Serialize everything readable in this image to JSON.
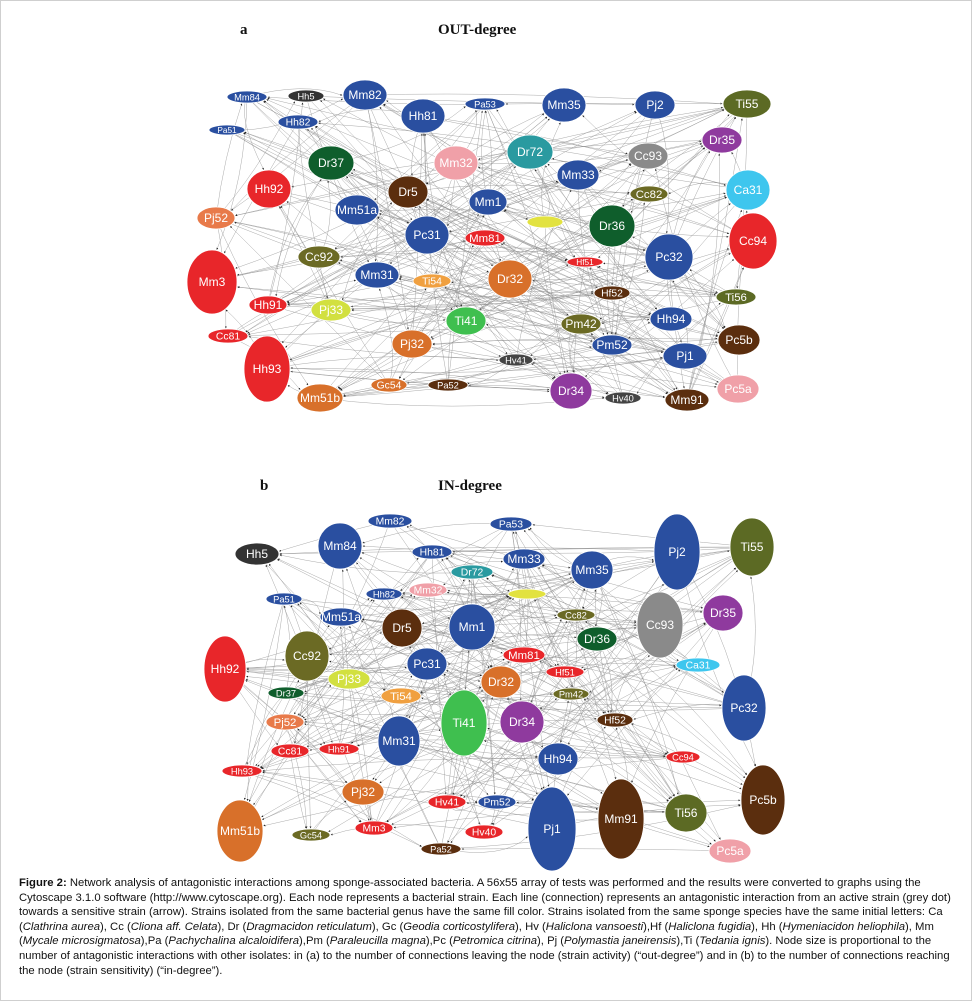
{
  "panel_a": {
    "letter": "a",
    "title": "OUT-degree",
    "nodes": [
      {
        "label": "Mm84",
        "color": "#2a4fa0"
      },
      {
        "label": "Hh5",
        "color": "#333333"
      },
      {
        "label": "Mm82",
        "color": "#2a4fa0"
      },
      {
        "label": "Pa53",
        "color": "#2a4fa0"
      },
      {
        "label": "Mm35",
        "color": "#2a4fa0"
      },
      {
        "label": "Pj2",
        "color": "#2a4fa0"
      },
      {
        "label": "Ti55",
        "color": "#5c6a24"
      },
      {
        "label": "Pa51",
        "color": "#2a4fa0"
      },
      {
        "label": "Hh82",
        "color": "#2a4fa0"
      },
      {
        "label": "Hh81",
        "color": "#2a4fa0"
      },
      {
        "label": "Dr35",
        "color": "#8f3a9e"
      },
      {
        "label": "Dr37",
        "color": "#0f5e2c"
      },
      {
        "label": "Mm32",
        "color": "#f0a0a8"
      },
      {
        "label": "Dr72",
        "color": "#2a9aa0"
      },
      {
        "label": "Cc93",
        "color": "#8a8a8a"
      },
      {
        "label": "Mm33",
        "color": "#2a4fa0"
      },
      {
        "label": "Hh92",
        "color": "#e8262a"
      },
      {
        "label": "Dr5",
        "color": "#5b2e0e"
      },
      {
        "label": "Cc82",
        "color": "#6b6a24"
      },
      {
        "label": "Ca31",
        "color": "#3ec6ee"
      },
      {
        "label": "Mm1",
        "color": "#2a4fa0"
      },
      {
        "label": "Mm51a",
        "color": "#2a4fa0"
      },
      {
        "label": "Pj52",
        "color": "#e87a4a"
      },
      {
        "label": "Pc31",
        "color": "#2a4fa0"
      },
      {
        "label": "",
        "color": "#e2e240"
      },
      {
        "label": "Dr36",
        "color": "#0f5e2c"
      },
      {
        "label": "Mm81",
        "color": "#e8262a"
      },
      {
        "label": "Cc94",
        "color": "#e8262a"
      },
      {
        "label": "Cc92",
        "color": "#6b6a24"
      },
      {
        "label": "Hf51",
        "color": "#e8262a"
      },
      {
        "label": "Pc32",
        "color": "#2a4fa0"
      },
      {
        "label": "Mm3",
        "color": "#e8262a"
      },
      {
        "label": "Mm31",
        "color": "#2a4fa0"
      },
      {
        "label": "Ti54",
        "color": "#f0a040"
      },
      {
        "label": "Dr32",
        "color": "#d8702a"
      },
      {
        "label": "Hf52",
        "color": "#5b2e0e"
      },
      {
        "label": "Ti56",
        "color": "#5c6a24"
      },
      {
        "label": "Hh91",
        "color": "#e8262a"
      },
      {
        "label": "Pj33",
        "color": "#d2e040"
      },
      {
        "label": "Ti41",
        "color": "#3fbf4f"
      },
      {
        "label": "Pm42",
        "color": "#6b6a24"
      },
      {
        "label": "Hh94",
        "color": "#2a4fa0"
      },
      {
        "label": "Cc81",
        "color": "#e8262a"
      },
      {
        "label": "Pc5b",
        "color": "#5b2e0e"
      },
      {
        "label": "Pj32",
        "color": "#d8702a"
      },
      {
        "label": "Pm52",
        "color": "#2a4fa0"
      },
      {
        "label": "Hh93",
        "color": "#e8262a"
      },
      {
        "label": "Hv41",
        "color": "#444444"
      },
      {
        "label": "Pj1",
        "color": "#2a4fa0"
      },
      {
        "label": "Gc54",
        "color": "#d8702a"
      },
      {
        "label": "Pa52",
        "color": "#5b2e0e"
      },
      {
        "label": "Mm51b",
        "color": "#d8702a"
      },
      {
        "label": "Dr34",
        "color": "#8f3a9e"
      },
      {
        "label": "Hv40",
        "color": "#444444"
      },
      {
        "label": "Mm91",
        "color": "#5b2e0e"
      },
      {
        "label": "Pc5a",
        "color": "#f0a0a8"
      }
    ]
  },
  "panel_b": {
    "letter": "b",
    "title": "IN-degree",
    "nodes": [
      {
        "label": "Mm82",
        "color": "#2a4fa0"
      },
      {
        "label": "Pa53",
        "color": "#2a4fa0"
      },
      {
        "label": "Hh5",
        "color": "#333333"
      },
      {
        "label": "Mm84",
        "color": "#2a4fa0"
      },
      {
        "label": "Hh81",
        "color": "#2a4fa0"
      },
      {
        "label": "Mm33",
        "color": "#2a4fa0"
      },
      {
        "label": "Pj2",
        "color": "#2a4fa0"
      },
      {
        "label": "Ti55",
        "color": "#5c6a24"
      },
      {
        "label": "Dr72",
        "color": "#2a9aa0"
      },
      {
        "label": "Mm35",
        "color": "#2a4fa0"
      },
      {
        "label": "Pa51",
        "color": "#2a4fa0"
      },
      {
        "label": "Hh82",
        "color": "#2a4fa0"
      },
      {
        "label": "Mm32",
        "color": "#f0a0a8"
      },
      {
        "label": "",
        "color": "#e2e240"
      },
      {
        "label": "Cc82",
        "color": "#6b6a24"
      },
      {
        "label": "Cc93",
        "color": "#8a8a8a"
      },
      {
        "label": "Dr35",
        "color": "#8f3a9e"
      },
      {
        "label": "Mm51a",
        "color": "#2a4fa0"
      },
      {
        "label": "Dr5",
        "color": "#5b2e0e"
      },
      {
        "label": "Mm1",
        "color": "#2a4fa0"
      },
      {
        "label": "Dr36",
        "color": "#0f5e2c"
      },
      {
        "label": "Hh92",
        "color": "#e8262a"
      },
      {
        "label": "Cc92",
        "color": "#6b6a24"
      },
      {
        "label": "Pc31",
        "color": "#2a4fa0"
      },
      {
        "label": "Mm81",
        "color": "#e8262a"
      },
      {
        "label": "Ca31",
        "color": "#3ec6ee"
      },
      {
        "label": "Hf51",
        "color": "#e8262a"
      },
      {
        "label": "Pj33",
        "color": "#d2e040"
      },
      {
        "label": "Dr32",
        "color": "#d8702a"
      },
      {
        "label": "Dr37",
        "color": "#0f5e2c"
      },
      {
        "label": "Ti54",
        "color": "#f0a040"
      },
      {
        "label": "Pm42",
        "color": "#6b6a24"
      },
      {
        "label": "Pc32",
        "color": "#2a4fa0"
      },
      {
        "label": "Ti41",
        "color": "#3fbf4f"
      },
      {
        "label": "Dr34",
        "color": "#8f3a9e"
      },
      {
        "label": "Hf52",
        "color": "#5b2e0e"
      },
      {
        "label": "Pj52",
        "color": "#e87a4a"
      },
      {
        "label": "Mm31",
        "color": "#2a4fa0"
      },
      {
        "label": "Cc81",
        "color": "#e8262a"
      },
      {
        "label": "Hh91",
        "color": "#e8262a"
      },
      {
        "label": "Hh94",
        "color": "#2a4fa0"
      },
      {
        "label": "Cc94",
        "color": "#e8262a"
      },
      {
        "label": "Hh93",
        "color": "#e8262a"
      },
      {
        "label": "Pj32",
        "color": "#d8702a"
      },
      {
        "label": "Hv41",
        "color": "#e8262a"
      },
      {
        "label": "Pm52",
        "color": "#2a4fa0"
      },
      {
        "label": "Pj1",
        "color": "#2a4fa0"
      },
      {
        "label": "Mm91",
        "color": "#5b2e0e"
      },
      {
        "label": "Ti56",
        "color": "#5c6a24"
      },
      {
        "label": "Pc5b",
        "color": "#5b2e0e"
      },
      {
        "label": "Mm51b",
        "color": "#d8702a"
      },
      {
        "label": "Gc54",
        "color": "#6b6a24"
      },
      {
        "label": "Mm3",
        "color": "#e8262a"
      },
      {
        "label": "Hv40",
        "color": "#e8262a"
      },
      {
        "label": "Pa52",
        "color": "#5b2e0e"
      },
      {
        "label": "Pc5a",
        "color": "#f0a0a8"
      }
    ]
  },
  "caption": {
    "label": "Figure 2:",
    "parts": [
      {
        "t": " Network analysis of antagonistic interactions among sponge-associated bacteria. A 56x55 array of tests was performed and the results were converted to graphs using the Cytoscape 3.1.0 software (http://www.cytoscape.org). Each node represents a bacterial strain. Each line (connection) represents an antagonistic interaction from an active strain (grey dot) towards a sensitive strain (arrow). Strains isolated from the same bacterial genus have the same fill color. Strains isolated from the same sponge species have the same initial letters: Ca (",
        "i": false
      },
      {
        "t": "Clathrina aurea",
        "i": true
      },
      {
        "t": "), Cc (",
        "i": false
      },
      {
        "t": "Cliona aff. Celata",
        "i": true
      },
      {
        "t": "), Dr (",
        "i": false
      },
      {
        "t": "Dragmacidon reticulatum",
        "i": true
      },
      {
        "t": "), Gc (",
        "i": false
      },
      {
        "t": "Geodia corticostylifera",
        "i": true
      },
      {
        "t": "), Hv (",
        "i": false
      },
      {
        "t": "Haliclona vansoesti",
        "i": true
      },
      {
        "t": "),Hf (",
        "i": false
      },
      {
        "t": "Haliclona fugidia",
        "i": true
      },
      {
        "t": "), Hh (",
        "i": false
      },
      {
        "t": "Hymeniacidon heliophila",
        "i": true
      },
      {
        "t": "), Mm (",
        "i": false
      },
      {
        "t": "Mycale microsigmatosa",
        "i": true
      },
      {
        "t": "),Pa (",
        "i": false
      },
      {
        "t": "Pachychalina alcaloidifera",
        "i": true
      },
      {
        "t": "),Pm (",
        "i": false
      },
      {
        "t": "Paraleucilla magna",
        "i": true
      },
      {
        "t": "),Pc (",
        "i": false
      },
      {
        "t": "Petromica citrina",
        "i": true
      },
      {
        "t": "), Pj (",
        "i": false
      },
      {
        "t": "Polymastia janeirensis",
        "i": true
      },
      {
        "t": "),Ti (",
        "i": false
      },
      {
        "t": "Tedania ignis",
        "i": true
      },
      {
        "t": "). Node size is proportional to the number of antagonistic interactions with other isolates: in (a) to the number of connections leaving the node (strain activity) (“out-degree”) and in (b) to the number of connections reaching the node (strain sensitivity) (“in-degree”).",
        "i": false
      }
    ]
  }
}
